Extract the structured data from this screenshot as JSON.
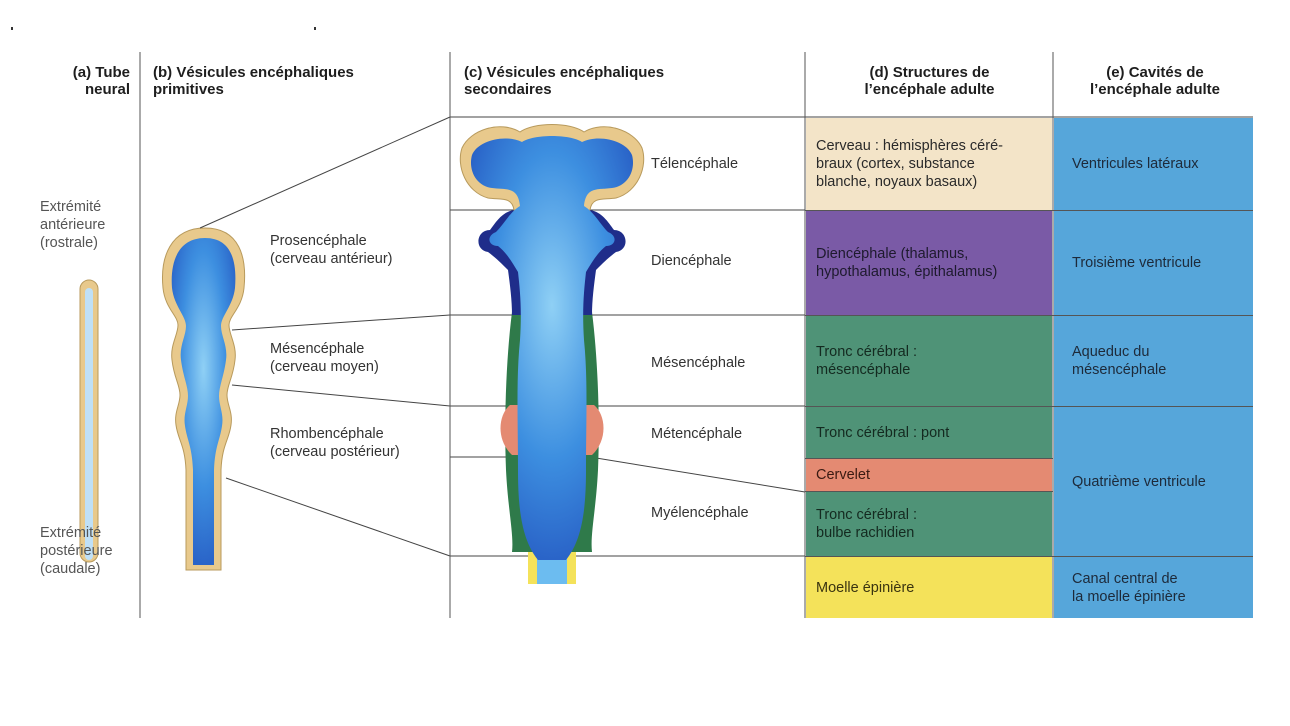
{
  "headers": {
    "a": "(a) Tube\nneural",
    "b": "(b) Vésicules encéphaliques\nprimitives",
    "c": "(c) Vésicules encéphaliques\nsecondaires",
    "d": "(d) Structures de\nl’encéphale adulte",
    "e": "(e) Cavités de\nl’encéphale adulte"
  },
  "neural_tube": {
    "anterior": "Extrémité\nantérieure\n(rostrale)",
    "posterior": "Extrémité\npostérieure\n(caudale)"
  },
  "primary_vesicles": [
    "Prosencéphale\n(cerveau antérieur)",
    "Mésencéphale\n(cerveau moyen)",
    "Rhombencéphale\n(cerveau postérieur)"
  ],
  "secondary_vesicles": [
    "Télencéphale",
    "Diencéphale",
    "Mésencéphale",
    "Métencéphale",
    "Myélencéphale"
  ],
  "adult_structures": [
    "Cerveau : hémisphères céré-\nbraux (cortex, substance\nblanche, noyaux basaux)",
    "Diencéphale (thalamus,\nhypothalamus, épithalamus)",
    "Tronc cérébral :\nmésencéphale",
    "Tronc cérébral : pont",
    "Cervelet",
    "Tronc cérébral :\nbulbe rachidien",
    "Moelle épinière"
  ],
  "adult_cavities": [
    "Ventricules latéraux",
    "Troisième ventricule",
    "Aqueduc du\nmésencéphale",
    "Quatrième ventricule",
    "Canal central de\nla moelle épinière"
  ],
  "colors": {
    "telencephalon": "#f3e4c8",
    "diencephalon": "#7a5aa6",
    "mesencephalon": "#4f9377",
    "cerebellum": "#e48a72",
    "spinal_cord": "#f4e25a",
    "cavity": "#56a6da",
    "tube_wall": "#e8c98c",
    "lumen": "#2f7fd6",
    "dark_blue": "#1f2d8a",
    "green_wall": "#2f7a4a"
  }
}
